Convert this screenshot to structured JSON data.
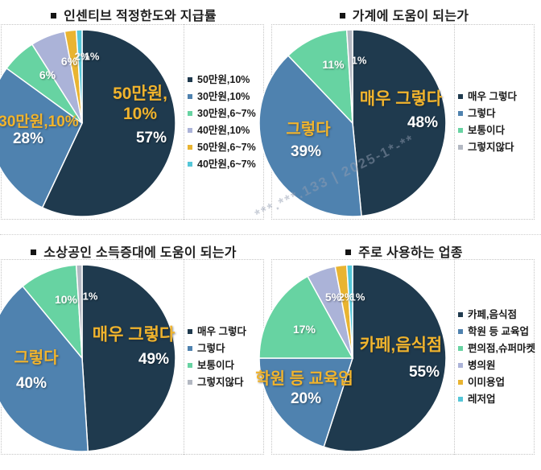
{
  "watermark": {
    "text": "***.***.133 | 2025-1*-**"
  },
  "colors": {
    "navy": "#1f3a4e",
    "blue": "#4f82af",
    "green": "#67d3a2",
    "lavender": "#abb3d8",
    "yellow": "#e9b431",
    "cyan": "#54c6d8",
    "gray": "#b3b8c2",
    "label_yellow": "#f1b42d",
    "label_white": "#ffffff"
  },
  "chart_data": [
    {
      "type": "pie",
      "title": "인센티브 적정한도와 지급률",
      "legend_position": "right",
      "slices": [
        {
          "label": "50만원,10%",
          "value": 57,
          "color": "#1f3a4e",
          "pct_label": "57%",
          "name_lines": [
            "50만원,",
            "10%"
          ]
        },
        {
          "label": "30만원,10%",
          "value": 28,
          "color": "#4f82af",
          "pct_label": "28%",
          "name_lines": [
            "30만원,10%"
          ]
        },
        {
          "label": "30만원,6~7%",
          "value": 6,
          "color": "#67d3a2",
          "pct_label": "6%"
        },
        {
          "label": "40만원,10%",
          "value": 6,
          "color": "#abb3d8",
          "pct_label": "6%"
        },
        {
          "label": "50만원,6~7%",
          "value": 2,
          "color": "#e9b431",
          "pct_label": "2%"
        },
        {
          "label": "40만원,6~7%",
          "value": 1,
          "color": "#54c6d8",
          "pct_label": "1%"
        }
      ]
    },
    {
      "type": "pie",
      "title": "가계에 도움이 되는가",
      "legend_position": "right",
      "slices": [
        {
          "label": "매우 그렇다",
          "value": 48,
          "color": "#1f3a4e",
          "pct_label": "48%",
          "name_lines": [
            "매우 그렇다"
          ]
        },
        {
          "label": "그렇다",
          "value": 39,
          "color": "#4f82af",
          "pct_label": "39%",
          "name_lines": [
            "그렇다"
          ]
        },
        {
          "label": "보통이다",
          "value": 11,
          "color": "#67d3a2",
          "pct_label": "11%"
        },
        {
          "label": "그렇지않다",
          "value": 1,
          "color": "#b3b8c2",
          "pct_label": "1%"
        }
      ]
    },
    {
      "type": "pie",
      "title": "소상공인 소득증대에 도움이 되는가",
      "legend_position": "right",
      "slices": [
        {
          "label": "매우 그렇다",
          "value": 49,
          "color": "#1f3a4e",
          "pct_label": "49%",
          "name_lines": [
            "매우 그렇다"
          ]
        },
        {
          "label": "그렇다",
          "value": 40,
          "color": "#4f82af",
          "pct_label": "40%",
          "name_lines": [
            "그렇다"
          ]
        },
        {
          "label": "보통이다",
          "value": 10,
          "color": "#67d3a2",
          "pct_label": "10%"
        },
        {
          "label": "그렇지않다",
          "value": 1,
          "color": "#b3b8c2",
          "pct_label": "1%"
        }
      ]
    },
    {
      "type": "pie",
      "title": "주로 사용하는 업종",
      "legend_position": "right",
      "slices": [
        {
          "label": "카페,음식점",
          "value": 55,
          "color": "#1f3a4e",
          "pct_label": "55%",
          "name_lines": [
            "카페,음식점"
          ]
        },
        {
          "label": "학원 등 교육업",
          "value": 20,
          "color": "#4f82af",
          "pct_label": "20%",
          "name_lines": [
            "학원 등 교육업"
          ]
        },
        {
          "label": "편의점,슈퍼마켓",
          "value": 17,
          "color": "#67d3a2",
          "pct_label": "17%"
        },
        {
          "label": "병의원",
          "value": 5,
          "color": "#abb3d8",
          "pct_label": "5%"
        },
        {
          "label": "이미용업",
          "value": 2,
          "color": "#e9b431",
          "pct_label": "2%"
        },
        {
          "label": "레저업",
          "value": 1,
          "color": "#54c6d8",
          "pct_label": "1%"
        }
      ]
    }
  ]
}
